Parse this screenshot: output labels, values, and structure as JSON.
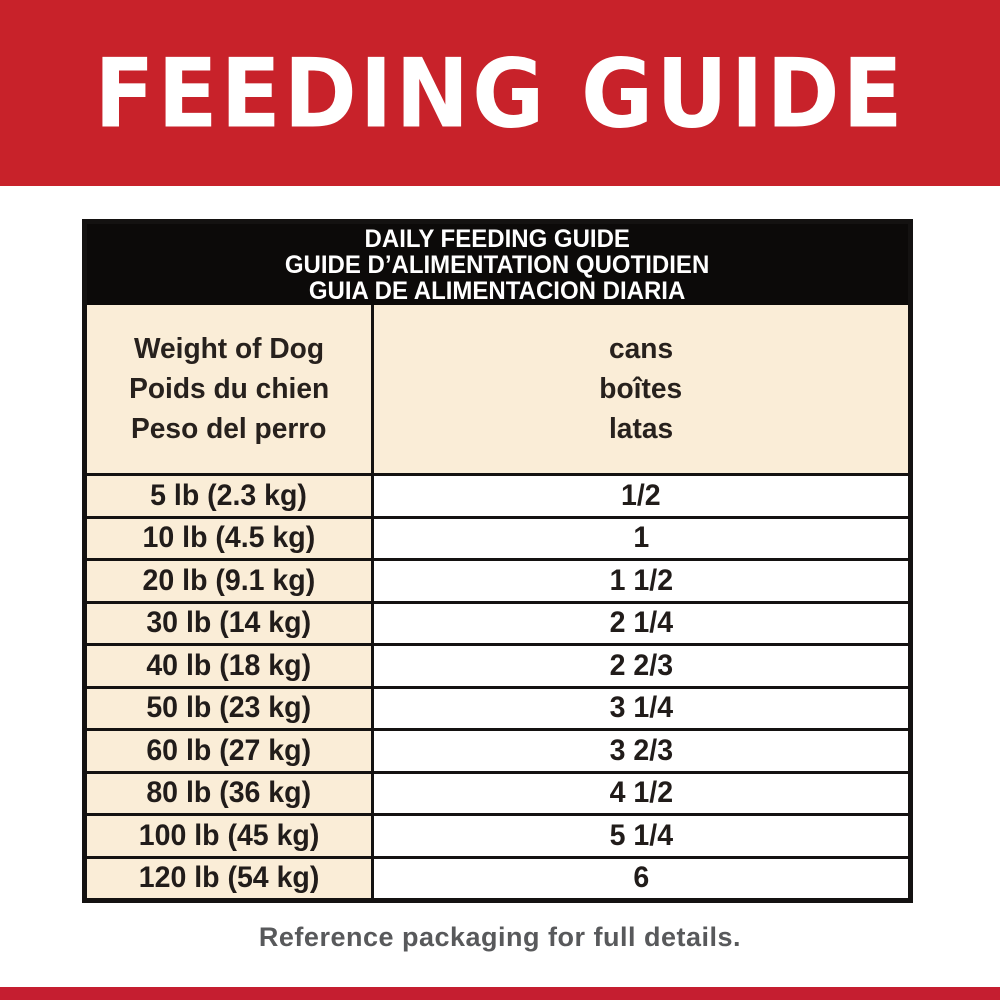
{
  "banner": {
    "title": "FEEDING GUIDE"
  },
  "table": {
    "title_lines": [
      "DAILY FEEDING GUIDE",
      "GUIDE D’ALIMENTATION QUOTIDIEN",
      "GUIA DE ALIMENTACION DIARIA"
    ],
    "weight_header_lines": [
      "Weight of Dog",
      "Poids du chien",
      "Peso del perro"
    ],
    "cans_header_lines": [
      "cans",
      "boîtes",
      "latas"
    ],
    "rows": [
      {
        "weight": "5 lb (2.3 kg)",
        "cans": "1/2"
      },
      {
        "weight": "10 lb (4.5 kg)",
        "cans": "1"
      },
      {
        "weight": "20 lb (9.1 kg)",
        "cans": "1 1/2"
      },
      {
        "weight": "30 lb (14 kg)",
        "cans": "2 1/4"
      },
      {
        "weight": "40 lb (18 kg)",
        "cans": "2 2/3"
      },
      {
        "weight": "50 lb (23 kg)",
        "cans": "3 1/4"
      },
      {
        "weight": "60 lb (27 kg)",
        "cans": "3 2/3"
      },
      {
        "weight": "80 lb (36 kg)",
        "cans": "4 1/2"
      },
      {
        "weight": "100 lb (45 kg)",
        "cans": "5 1/4"
      },
      {
        "weight": "120 lb (54 kg)",
        "cans": "6"
      }
    ]
  },
  "footer": {
    "note": "Reference packaging for full details."
  },
  "colors": {
    "banner_red": "#C8222A",
    "strip_red": "#C51E30",
    "cream": "#FAEDD7",
    "border_black": "#141211",
    "note_gray": "#58595B"
  }
}
